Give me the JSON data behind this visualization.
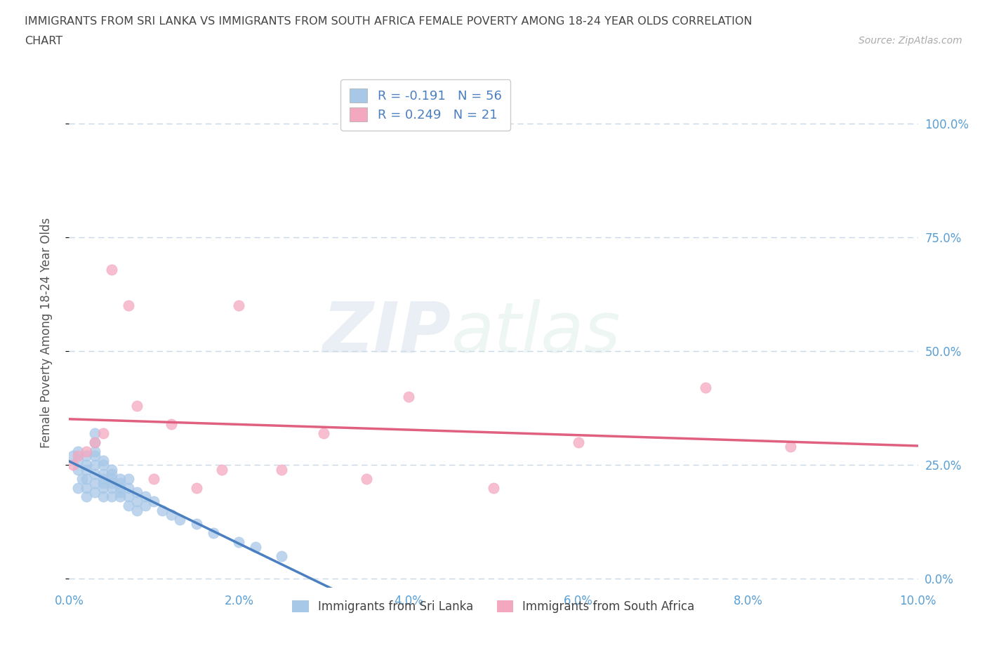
{
  "title_line1": "IMMIGRANTS FROM SRI LANKA VS IMMIGRANTS FROM SOUTH AFRICA FEMALE POVERTY AMONG 18-24 YEAR OLDS CORRELATION",
  "title_line2": "CHART",
  "source_text": "Source: ZipAtlas.com",
  "ylabel": "Female Poverty Among 18-24 Year Olds",
  "xlim": [
    0.0,
    0.1
  ],
  "ylim": [
    -0.02,
    1.1
  ],
  "yticks": [
    0.0,
    0.25,
    0.5,
    0.75,
    1.0
  ],
  "ytick_labels_right": [
    "100.0%",
    "75.0%",
    "50.0%",
    "25.0%",
    "0.0%"
  ],
  "ytick_labels_right_ordered": [
    "0.0%",
    "25.0%",
    "50.0%",
    "75.0%",
    "100.0%"
  ],
  "xticks": [
    0.0,
    0.02,
    0.04,
    0.06,
    0.08,
    0.1
  ],
  "xtick_labels": [
    "0.0%",
    "2.0%",
    "4.0%",
    "6.0%",
    "8.0%",
    "10.0%"
  ],
  "watermark_zip": "ZIP",
  "watermark_atlas": "atlas",
  "sri_lanka_color": "#a8c8e8",
  "south_africa_color": "#f4a8c0",
  "sri_lanka_R": -0.191,
  "sri_lanka_N": 56,
  "south_africa_R": 0.249,
  "south_africa_N": 21,
  "legend_label_1": "Immigrants from Sri Lanka",
  "legend_label_2": "Immigrants from South Africa",
  "sri_lanka_x": [
    0.0005,
    0.001,
    0.001,
    0.001,
    0.001,
    0.0015,
    0.002,
    0.002,
    0.002,
    0.002,
    0.002,
    0.002,
    0.003,
    0.003,
    0.003,
    0.003,
    0.003,
    0.003,
    0.003,
    0.003,
    0.004,
    0.004,
    0.004,
    0.004,
    0.004,
    0.004,
    0.004,
    0.005,
    0.005,
    0.005,
    0.005,
    0.005,
    0.005,
    0.006,
    0.006,
    0.006,
    0.006,
    0.006,
    0.007,
    0.007,
    0.007,
    0.007,
    0.008,
    0.008,
    0.008,
    0.009,
    0.009,
    0.01,
    0.011,
    0.012,
    0.013,
    0.015,
    0.017,
    0.02,
    0.022,
    0.025
  ],
  "sri_lanka_y": [
    0.27,
    0.24,
    0.26,
    0.28,
    0.2,
    0.22,
    0.25,
    0.27,
    0.22,
    0.24,
    0.2,
    0.18,
    0.27,
    0.25,
    0.23,
    0.21,
    0.19,
    0.3,
    0.28,
    0.32,
    0.26,
    0.23,
    0.21,
    0.25,
    0.22,
    0.2,
    0.18,
    0.24,
    0.22,
    0.2,
    0.18,
    0.23,
    0.21,
    0.22,
    0.2,
    0.18,
    0.21,
    0.19,
    0.2,
    0.22,
    0.18,
    0.16,
    0.19,
    0.17,
    0.15,
    0.18,
    0.16,
    0.17,
    0.15,
    0.14,
    0.13,
    0.12,
    0.1,
    0.08,
    0.07,
    0.05
  ],
  "south_africa_x": [
    0.0005,
    0.001,
    0.002,
    0.003,
    0.004,
    0.005,
    0.007,
    0.008,
    0.01,
    0.012,
    0.015,
    0.018,
    0.02,
    0.025,
    0.03,
    0.035,
    0.04,
    0.05,
    0.06,
    0.075,
    0.085
  ],
  "south_africa_y": [
    0.25,
    0.27,
    0.28,
    0.3,
    0.32,
    0.68,
    0.6,
    0.38,
    0.22,
    0.34,
    0.2,
    0.24,
    0.6,
    0.24,
    0.32,
    0.22,
    0.4,
    0.2,
    0.3,
    0.42,
    0.29
  ],
  "grid_color": "#c8d8e8",
  "trend_line_1_color": "#4a7fc0",
  "trend_line_2_color": "#e06080",
  "bg_color": "#ffffff",
  "tick_color": "#5a9fd4",
  "title_color": "#444444",
  "legend_text_color": "#4a7fc0"
}
